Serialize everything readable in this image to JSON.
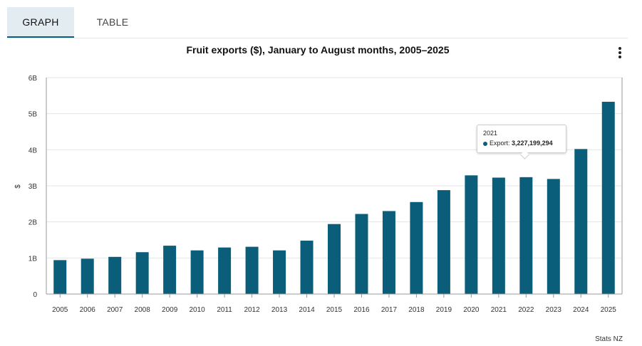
{
  "tabs": [
    {
      "label": "GRAPH",
      "active": true
    },
    {
      "label": "TABLE",
      "active": false
    }
  ],
  "credit": "Stats NZ",
  "tooltip": {
    "year": "2021",
    "series_label": "Export:",
    "value_text": "3,227,199,294"
  },
  "colors": {
    "bar": "#0b5e7a",
    "accent": "#0b5e7a"
  },
  "chart_data": {
    "type": "bar",
    "title": "Fruit exports ($), January to August months, 2005–2025",
    "ylabel": "$",
    "xlabel": "",
    "ylim": [
      0,
      6000000000
    ],
    "yticks": [
      0,
      1000000000,
      2000000000,
      3000000000,
      4000000000,
      5000000000,
      6000000000
    ],
    "ytick_labels": [
      "0",
      "1B",
      "2B",
      "3B",
      "4B",
      "5B",
      "6B"
    ],
    "grid": true,
    "categories": [
      "2005",
      "2006",
      "2007",
      "2008",
      "2009",
      "2010",
      "2011",
      "2012",
      "2013",
      "2014",
      "2015",
      "2016",
      "2017",
      "2018",
      "2019",
      "2020",
      "2021",
      "2022",
      "2023",
      "2024",
      "2025"
    ],
    "series": [
      {
        "name": "Export",
        "values": [
          940000000,
          980000000,
          1030000000,
          1160000000,
          1340000000,
          1210000000,
          1290000000,
          1310000000,
          1210000000,
          1480000000,
          1940000000,
          2220000000,
          2300000000,
          2550000000,
          2880000000,
          3290000000,
          3227199294,
          3240000000,
          3190000000,
          4020000000,
          5330000000
        ]
      }
    ]
  }
}
